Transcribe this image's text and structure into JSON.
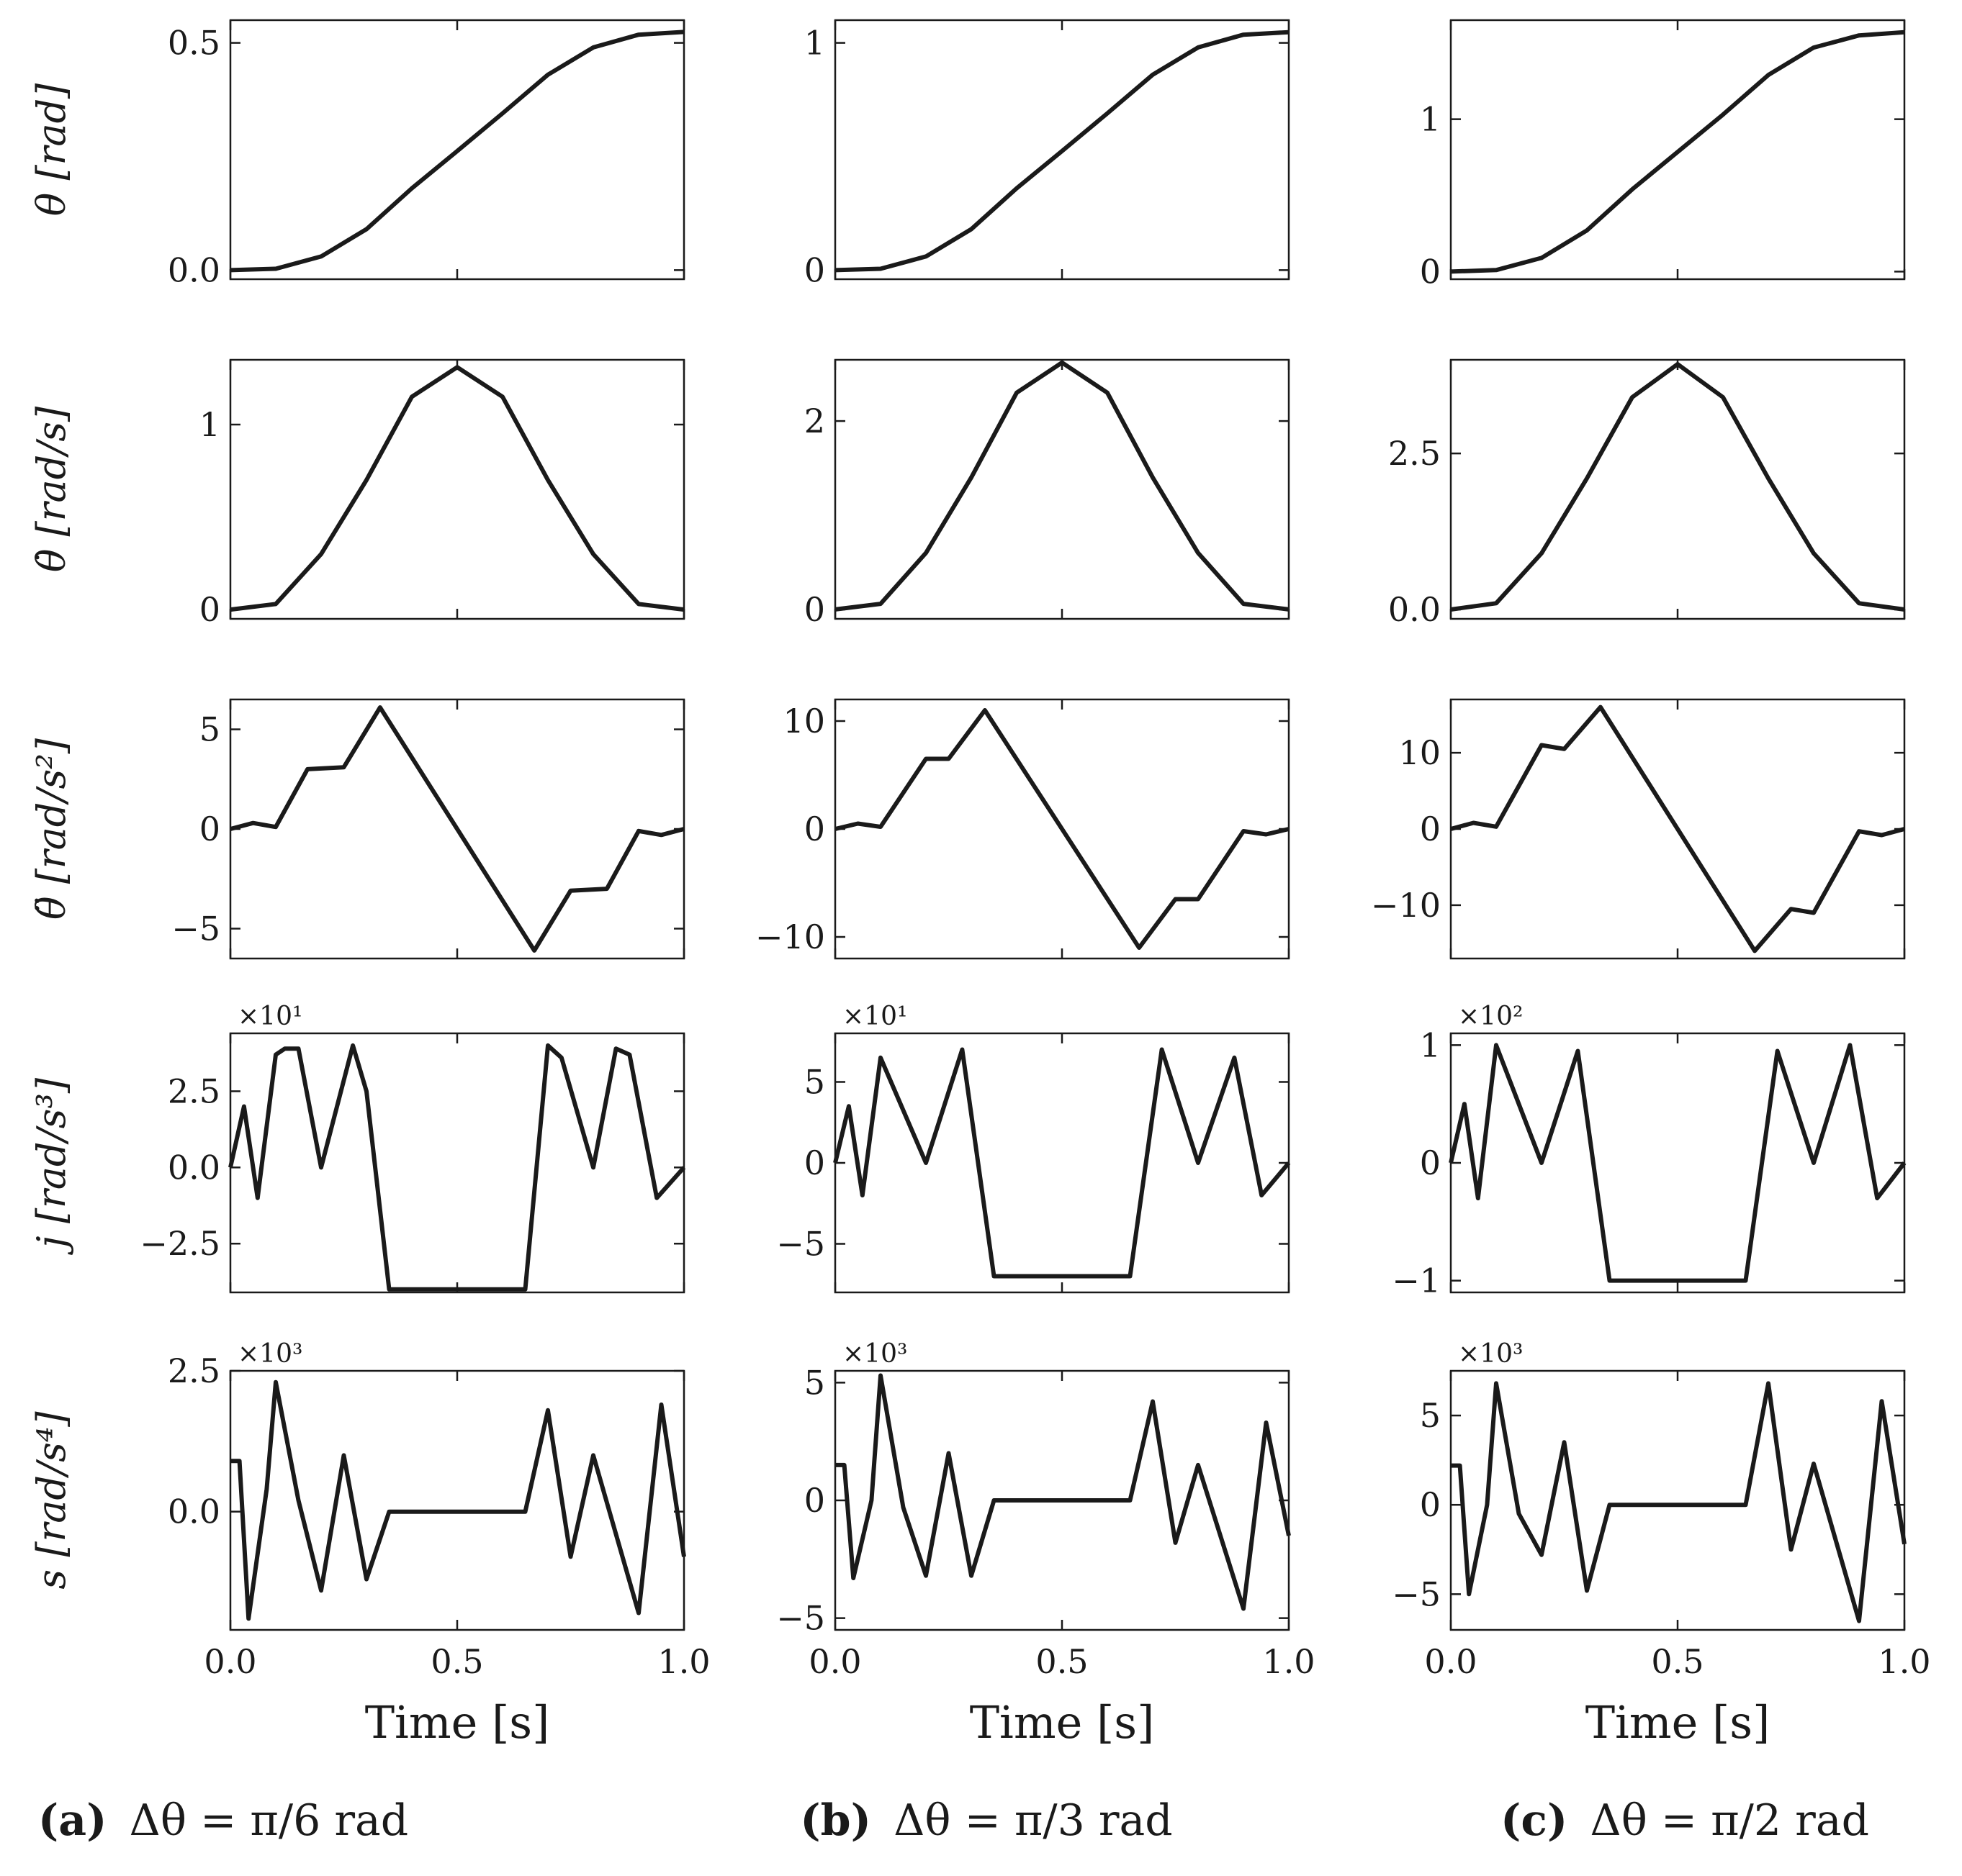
{
  "figure_kind": "trajectory profiles",
  "xlabel": "Time [s]",
  "row_ylabels": [
    "θ [rad]",
    "θ̇ [rad/s]",
    "θ̈ [rad/s²]",
    "j [rad/s³]",
    "s [rad/s⁴]"
  ],
  "captions": [
    {
      "tag": "(a)",
      "text": "Δθ = π/6 rad"
    },
    {
      "tag": "(b)",
      "text": "Δθ = π/3 rad"
    },
    {
      "tag": "(c)",
      "text": "Δθ = π/2 rad"
    }
  ],
  "columns": [
    {
      "id": "a",
      "scale": 1,
      "yTicks": [
        [
          "0.0",
          "0.5"
        ],
        [
          "0",
          "1"
        ],
        [
          "-5",
          "0",
          "5"
        ],
        [
          "-2.5",
          "0.0",
          "2.5"
        ],
        [
          "0.0",
          "2.5"
        ]
      ]
    },
    {
      "id": "b",
      "scale": 2,
      "yTicks": [
        [
          "0",
          "1"
        ],
        [
          "0",
          "2"
        ],
        [
          "-10",
          "0",
          "10"
        ],
        [
          "-5",
          "0",
          "5"
        ],
        [
          "-5",
          "0",
          "5"
        ]
      ]
    },
    {
      "id": "c",
      "scale": 3,
      "yTicks": [
        [
          "0",
          "1"
        ],
        [
          "0.0",
          "2.5"
        ],
        [
          "-10",
          "0",
          "10"
        ],
        [
          "-1",
          "0",
          "1"
        ],
        [
          "-5",
          "0",
          "5"
        ]
      ]
    }
  ],
  "chart_data": [
    {
      "type": "line",
      "panel": "a-pos",
      "xlabel": "Time [s]",
      "ylabel": "θ [rad]",
      "xlim": [
        0,
        1
      ],
      "ylim": [
        -0.02,
        0.55
      ],
      "series": [
        {
          "name": "θ",
          "x": [
            0,
            0.1,
            0.2,
            0.3,
            0.4,
            0.5,
            0.6,
            0.7,
            0.8,
            0.9,
            1.0
          ],
          "values": [
            0,
            0.003,
            0.03,
            0.09,
            0.18,
            0.262,
            0.345,
            0.43,
            0.49,
            0.518,
            0.524
          ]
        }
      ]
    },
    {
      "type": "line",
      "panel": "a-vel",
      "xlabel": "Time [s]",
      "ylabel": "θ̇ [rad/s]",
      "xlim": [
        0,
        1
      ],
      "ylim": [
        -0.05,
        1.35
      ],
      "series": [
        {
          "name": "θ̇",
          "x": [
            0,
            0.1,
            0.2,
            0.3,
            0.4,
            0.5,
            0.6,
            0.7,
            0.8,
            0.9,
            1.0
          ],
          "values": [
            0,
            0.03,
            0.3,
            0.7,
            1.15,
            1.31,
            1.15,
            0.7,
            0.3,
            0.03,
            0
          ]
        }
      ]
    },
    {
      "type": "line",
      "panel": "a-acc",
      "xlabel": "Time [s]",
      "ylabel": "θ̈ [rad/s²]",
      "xlim": [
        0,
        1
      ],
      "ylim": [
        -6.5,
        6.5
      ],
      "series": [
        {
          "name": "θ̈",
          "x": [
            0,
            0.05,
            0.1,
            0.17,
            0.25,
            0.33,
            0.5,
            0.67,
            0.75,
            0.83,
            0.9,
            0.95,
            1.0
          ],
          "values": [
            0,
            0.3,
            0.1,
            3,
            3.1,
            6.1,
            0,
            -6.1,
            -3.1,
            -3,
            -0.1,
            -0.3,
            0
          ]
        }
      ]
    },
    {
      "type": "line",
      "panel": "a-jerk",
      "xlabel": "Time [s]",
      "ylabel": "j [rad/s³]",
      "xlim": [
        0,
        1
      ],
      "ylim": [
        -4.1,
        4.4
      ],
      "multiplier": "×10¹",
      "series": [
        {
          "name": "j",
          "x": [
            0,
            0.03,
            0.06,
            0.1,
            0.12,
            0.15,
            0.2,
            0.27,
            0.3,
            0.35,
            0.65,
            0.7,
            0.73,
            0.8,
            0.85,
            0.88,
            0.94,
            1.0
          ],
          "values": [
            0,
            2,
            -1,
            3.7,
            3.9,
            3.9,
            0,
            4,
            2.5,
            -4,
            -4,
            4,
            3.6,
            0,
            3.9,
            3.7,
            -1,
            0
          ]
        }
      ]
    },
    {
      "type": "line",
      "panel": "a-snap",
      "xlabel": "Time [s]",
      "ylabel": "s [rad/s⁴]",
      "xlim": [
        0,
        1
      ],
      "ylim": [
        -2.1,
        2.5
      ],
      "multiplier": "×10³",
      "series": [
        {
          "name": "s",
          "x": [
            0,
            0.02,
            0.04,
            0.08,
            0.1,
            0.15,
            0.2,
            0.25,
            0.3,
            0.35,
            0.65,
            0.7,
            0.75,
            0.8,
            0.9,
            0.95,
            1.0
          ],
          "values": [
            0.9,
            0.9,
            -1.9,
            0.4,
            2.3,
            0.2,
            -1.4,
            1,
            -1.2,
            0,
            0,
            1.8,
            -0.8,
            1,
            -1.8,
            1.9,
            -0.8
          ]
        }
      ]
    },
    {
      "type": "line",
      "panel": "b-pos",
      "xlabel": "Time [s]",
      "ylabel": "θ [rad]",
      "xlim": [
        0,
        1
      ],
      "ylim": [
        -0.04,
        1.1
      ],
      "series": [
        {
          "name": "θ",
          "x": [
            0,
            0.1,
            0.2,
            0.3,
            0.4,
            0.5,
            0.6,
            0.7,
            0.8,
            0.9,
            1.0
          ],
          "values": [
            0,
            0.006,
            0.06,
            0.18,
            0.36,
            0.524,
            0.69,
            0.86,
            0.98,
            1.036,
            1.047
          ]
        }
      ]
    },
    {
      "type": "line",
      "panel": "b-vel",
      "xlabel": "Time [s]",
      "ylabel": "θ̇ [rad/s]",
      "xlim": [
        0,
        1
      ],
      "ylim": [
        -0.1,
        2.65
      ],
      "series": [
        {
          "name": "θ̇",
          "x": [
            0,
            0.1,
            0.2,
            0.3,
            0.4,
            0.5,
            0.6,
            0.7,
            0.8,
            0.9,
            1.0
          ],
          "values": [
            0,
            0.06,
            0.6,
            1.4,
            2.3,
            2.62,
            2.3,
            1.4,
            0.6,
            0.06,
            0
          ]
        }
      ]
    },
    {
      "type": "line",
      "panel": "b-acc",
      "xlabel": "Time [s]",
      "ylabel": "θ̈ [rad/s²]",
      "xlim": [
        0,
        1
      ],
      "ylim": [
        -12,
        12
      ],
      "series": [
        {
          "name": "θ̈",
          "x": [
            0,
            0.05,
            0.1,
            0.2,
            0.25,
            0.33,
            0.5,
            0.67,
            0.75,
            0.8,
            0.9,
            0.95,
            1.0
          ],
          "values": [
            0,
            0.5,
            0.2,
            6.5,
            6.5,
            11,
            0,
            -11,
            -6.5,
            -6.5,
            -0.2,
            -0.5,
            0
          ]
        }
      ]
    },
    {
      "type": "line",
      "panel": "b-jerk",
      "xlabel": "Time [s]",
      "ylabel": "j [rad/s³]",
      "xlim": [
        0,
        1
      ],
      "ylim": [
        -8,
        8
      ],
      "multiplier": "×10¹",
      "series": [
        {
          "name": "j",
          "x": [
            0,
            0.03,
            0.06,
            0.1,
            0.2,
            0.28,
            0.35,
            0.65,
            0.72,
            0.8,
            0.88,
            0.94,
            1.0
          ],
          "values": [
            0,
            3.5,
            -2,
            6.5,
            0,
            7,
            -7,
            -7,
            7,
            0,
            6.5,
            -2,
            0
          ]
        }
      ]
    },
    {
      "type": "line",
      "panel": "b-snap",
      "xlabel": "Time [s]",
      "ylabel": "s [rad/s⁴]",
      "xlim": [
        0,
        1
      ],
      "ylim": [
        -5.5,
        5.5
      ],
      "multiplier": "×10³",
      "series": [
        {
          "name": "s",
          "x": [
            0,
            0.02,
            0.04,
            0.08,
            0.1,
            0.15,
            0.2,
            0.25,
            0.3,
            0.35,
            0.65,
            0.7,
            0.75,
            0.8,
            0.9,
            0.95,
            1.0
          ],
          "values": [
            1.5,
            1.5,
            -3.3,
            0,
            5.3,
            -0.3,
            -3.2,
            2,
            -3.2,
            0,
            0,
            4.2,
            -1.8,
            1.5,
            -4.6,
            3.3,
            -1.5
          ]
        }
      ]
    },
    {
      "type": "line",
      "panel": "c-pos",
      "xlabel": "Time [s]",
      "ylabel": "θ [rad]",
      "xlim": [
        0,
        1
      ],
      "ylim": [
        -0.05,
        1.65
      ],
      "series": [
        {
          "name": "θ",
          "x": [
            0,
            0.1,
            0.2,
            0.3,
            0.4,
            0.5,
            0.6,
            0.7,
            0.8,
            0.9,
            1.0
          ],
          "values": [
            0,
            0.01,
            0.09,
            0.27,
            0.54,
            0.785,
            1.03,
            1.29,
            1.47,
            1.55,
            1.571
          ]
        }
      ]
    },
    {
      "type": "line",
      "panel": "c-vel",
      "xlabel": "Time [s]",
      "ylabel": "θ̇ [rad/s]",
      "xlim": [
        0,
        1
      ],
      "ylim": [
        -0.15,
        4.0
      ],
      "series": [
        {
          "name": "θ̇",
          "x": [
            0,
            0.1,
            0.2,
            0.3,
            0.4,
            0.5,
            0.6,
            0.7,
            0.8,
            0.9,
            1.0
          ],
          "values": [
            0,
            0.1,
            0.9,
            2.1,
            3.4,
            3.93,
            3.4,
            2.1,
            0.9,
            0.1,
            0
          ]
        }
      ]
    },
    {
      "type": "line",
      "panel": "c-acc",
      "xlabel": "Time [s]",
      "ylabel": "θ̈ [rad/s²]",
      "xlim": [
        0,
        1
      ],
      "ylim": [
        -17,
        17
      ],
      "series": [
        {
          "name": "θ̈",
          "x": [
            0,
            0.05,
            0.1,
            0.2,
            0.25,
            0.33,
            0.5,
            0.67,
            0.75,
            0.8,
            0.9,
            0.95,
            1.0
          ],
          "values": [
            0,
            0.8,
            0.3,
            11,
            10.5,
            16,
            0,
            -16,
            -10.5,
            -11,
            -0.3,
            -0.8,
            0
          ]
        }
      ]
    },
    {
      "type": "line",
      "panel": "c-jerk",
      "xlabel": "Time [s]",
      "ylabel": "j [rad/s³]",
      "xlim": [
        0,
        1
      ],
      "ylim": [
        -1.1,
        1.1
      ],
      "multiplier": "×10²",
      "series": [
        {
          "name": "j",
          "x": [
            0,
            0.03,
            0.06,
            0.1,
            0.2,
            0.28,
            0.35,
            0.65,
            0.72,
            0.8,
            0.88,
            0.94,
            1.0
          ],
          "values": [
            0,
            0.5,
            -0.3,
            1,
            0,
            0.95,
            -1,
            -1,
            0.95,
            0,
            1,
            -0.3,
            0
          ]
        }
      ]
    },
    {
      "type": "line",
      "panel": "c-snap",
      "xlabel": "Time [s]",
      "ylabel": "s [rad/s⁴]",
      "xlim": [
        0,
        1
      ],
      "ylim": [
        -7,
        7.5
      ],
      "multiplier": "×10³",
      "series": [
        {
          "name": "s",
          "x": [
            0,
            0.02,
            0.04,
            0.08,
            0.1,
            0.15,
            0.2,
            0.25,
            0.3,
            0.35,
            0.65,
            0.7,
            0.75,
            0.8,
            0.9,
            0.95,
            1.0
          ],
          "values": [
            2.2,
            2.2,
            -5,
            0,
            6.8,
            -0.5,
            -2.8,
            3.5,
            -4.8,
            0,
            0,
            6.8,
            -2.5,
            2.3,
            -6.5,
            5.8,
            -2.2
          ]
        }
      ]
    }
  ]
}
